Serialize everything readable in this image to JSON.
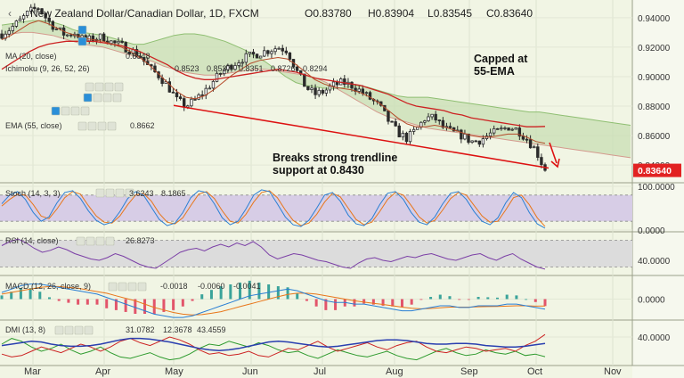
{
  "header": {
    "symbol": "New Zealand Dollar/Canadian Dollar, 1D, FXCM",
    "o_label": "O",
    "o": "0.83780",
    "h_label": "H",
    "h": "0.83904",
    "l_label": "L",
    "l": "0.83545",
    "c_label": "C",
    "c": "0.83640"
  },
  "overlay_legend": {
    "ma": {
      "label": "MA (20, close)",
      "value": "0.8548",
      "color": "#cc2222"
    },
    "ichimoku": {
      "label": "Ichimoku (9, 26, 52, 26)",
      "values": [
        "0.8523",
        "0.8537",
        "0.8351",
        "0.8726",
        "0.8294"
      ],
      "colors": [
        "#2a7fd4",
        "#cc2222",
        "#2e9b2e",
        "#2e9b2e",
        "#cc2222"
      ]
    },
    "ema": {
      "label": "EMA (55, close)",
      "value": "0.8662",
      "color": "#cc2222"
    }
  },
  "annotations": {
    "capped_line1": "Capped at",
    "capped_line2": "55-EMA",
    "breaks_line1": "Breaks strong trendline",
    "breaks_line2": "support at 0.8430"
  },
  "price_tag": "0.83640",
  "months": [
    "Mar",
    "Apr",
    "May",
    "Jun",
    "Jul",
    "Aug",
    "Sep",
    "Oct",
    "Nov"
  ],
  "colors": {
    "up": "#2a2a2a",
    "down": "#2a2a2a",
    "trendline": "#dd1111",
    "cloud": "#c8ddb4",
    "tag": "#e22222"
  },
  "chart_data": [
    {
      "type": "candlestick",
      "title": "New Zealand Dollar/Canadian Dollar, 1D, FXCM",
      "ylim": [
        0.828,
        0.952
      ],
      "yticks": [
        0.84,
        0.86,
        0.88,
        0.9,
        0.92,
        0.94
      ],
      "ytick_labels": [
        "0.84000",
        "0.86000",
        "0.88000",
        "0.90000",
        "0.92000",
        "0.94000"
      ],
      "x_months": [
        "Mar",
        "Apr",
        "May",
        "Jun",
        "Jul",
        "Aug",
        "Sep",
        "Oct",
        "Nov"
      ],
      "close_path": [
        0.929,
        0.933,
        0.938,
        0.944,
        0.947,
        0.938,
        0.932,
        0.928,
        0.93,
        0.924,
        0.926,
        0.927,
        0.923,
        0.921,
        0.918,
        0.914,
        0.906,
        0.901,
        0.894,
        0.884,
        0.88,
        0.884,
        0.89,
        0.897,
        0.904,
        0.908,
        0.912,
        0.914,
        0.916,
        0.918,
        0.92,
        0.918,
        0.904,
        0.893,
        0.888,
        0.89,
        0.894,
        0.896,
        0.894,
        0.89,
        0.885,
        0.88,
        0.87,
        0.862,
        0.858,
        0.864,
        0.872,
        0.872,
        0.865,
        0.862,
        0.86,
        0.856,
        0.857,
        0.861,
        0.863,
        0.866,
        0.864,
        0.858,
        0.85,
        0.8364
      ],
      "ma20": [
        0.925,
        0.928,
        0.932,
        0.936,
        0.938,
        0.936,
        0.933,
        0.93,
        0.928,
        0.926,
        0.925,
        0.924,
        0.922,
        0.92,
        0.917,
        0.913,
        0.908,
        0.902,
        0.896,
        0.89,
        0.886,
        0.885,
        0.887,
        0.891,
        0.896,
        0.901,
        0.905,
        0.909,
        0.911,
        0.912,
        0.913,
        0.912,
        0.908,
        0.903,
        0.898,
        0.895,
        0.893,
        0.892,
        0.891,
        0.889,
        0.886,
        0.882,
        0.877,
        0.872,
        0.868,
        0.866,
        0.866,
        0.867,
        0.866,
        0.864,
        0.862,
        0.86,
        0.859,
        0.859,
        0.86,
        0.861,
        0.861,
        0.859,
        0.856,
        0.8548
      ],
      "ema55": [
        0.905,
        0.909,
        0.913,
        0.917,
        0.92,
        0.922,
        0.923,
        0.924,
        0.924,
        0.924,
        0.924,
        0.923,
        0.922,
        0.921,
        0.919,
        0.917,
        0.914,
        0.911,
        0.908,
        0.904,
        0.901,
        0.899,
        0.898,
        0.898,
        0.899,
        0.9,
        0.901,
        0.902,
        0.903,
        0.904,
        0.905,
        0.904,
        0.903,
        0.901,
        0.899,
        0.898,
        0.897,
        0.896,
        0.895,
        0.894,
        0.892,
        0.89,
        0.888,
        0.885,
        0.882,
        0.88,
        0.879,
        0.878,
        0.877,
        0.875,
        0.874,
        0.872,
        0.871,
        0.87,
        0.869,
        0.868,
        0.867,
        0.866,
        0.866,
        0.8662
      ],
      "cloud_a": [
        0.935,
        0.936,
        0.937,
        0.938,
        0.938,
        0.937,
        0.935,
        0.932,
        0.93,
        0.929,
        0.928,
        0.926,
        0.924,
        0.922,
        0.922,
        0.924,
        0.926,
        0.928,
        0.929,
        0.929,
        0.928,
        0.926,
        0.924,
        0.921,
        0.918,
        0.914,
        0.91,
        0.905,
        0.9,
        0.896,
        0.894,
        0.893,
        0.892,
        0.892,
        0.893,
        0.894,
        0.893,
        0.891,
        0.889,
        0.887,
        0.886,
        0.886,
        0.886,
        0.885,
        0.884,
        0.883,
        0.882,
        0.881,
        0.88,
        0.879,
        0.878,
        0.877,
        0.876,
        0.876,
        0.875,
        0.874,
        0.873,
        0.872,
        0.871,
        0.87,
        0.869,
        0.868,
        0.867
      ],
      "cloud_b": [
        0.928,
        0.929,
        0.93,
        0.93,
        0.929,
        0.928,
        0.926,
        0.924,
        0.922,
        0.921,
        0.92,
        0.918,
        0.916,
        0.914,
        0.912,
        0.91,
        0.907,
        0.905,
        0.903,
        0.902,
        0.901,
        0.901,
        0.902,
        0.903,
        0.904,
        0.905,
        0.905,
        0.904,
        0.903,
        0.902,
        0.901,
        0.899,
        0.896,
        0.892,
        0.888,
        0.884,
        0.88,
        0.876,
        0.873,
        0.871,
        0.869,
        0.867,
        0.865,
        0.864,
        0.863,
        0.862,
        0.861,
        0.86,
        0.859,
        0.858,
        0.857,
        0.856,
        0.855,
        0.854,
        0.853,
        0.852,
        0.851,
        0.85,
        0.849,
        0.848,
        0.847,
        0.846,
        0.845
      ],
      "trendline": {
        "start": [
          "May",
          0.8805
        ],
        "end": [
          "Oct",
          0.838
        ]
      },
      "last_close": 0.8364
    },
    {
      "type": "line",
      "title": "Stoch (14, 3, 3)",
      "values_label": [
        "3.6243",
        "8.1865"
      ],
      "colors": [
        "#2a7fd4",
        "#e8761a"
      ],
      "ylim": [
        0,
        100
      ],
      "yticks": [
        0,
        100
      ],
      "ytick_labels": [
        "0.0000",
        "100.0000"
      ],
      "band": [
        20,
        80
      ],
      "k": [
        60,
        80,
        88,
        70,
        40,
        20,
        30,
        62,
        86,
        90,
        72,
        44,
        22,
        12,
        18,
        42,
        72,
        88,
        80,
        52,
        24,
        10,
        16,
        40,
        74,
        90,
        86,
        60,
        28,
        12,
        20,
        48,
        80,
        92,
        88,
        60,
        30,
        12,
        8,
        22,
        50,
        80,
        86,
        66,
        34,
        14,
        10,
        26,
        58,
        84,
        88,
        70,
        40,
        18,
        12,
        30,
        60,
        84,
        88,
        70,
        42,
        20,
        12,
        28,
        62,
        86,
        74,
        40,
        14,
        4
      ],
      "d": [
        55,
        70,
        82,
        80,
        58,
        32,
        26,
        48,
        74,
        88,
        82,
        56,
        32,
        18,
        16,
        32,
        58,
        80,
        84,
        66,
        38,
        18,
        14,
        28,
        56,
        82,
        88,
        72,
        44,
        20,
        16,
        36,
        64,
        86,
        90,
        74,
        46,
        22,
        10,
        16,
        36,
        64,
        84,
        76,
        50,
        24,
        12,
        18,
        42,
        70,
        86,
        80,
        56,
        30,
        16,
        22,
        46,
        72,
        86,
        80,
        56,
        32,
        18,
        20,
        46,
        74,
        80,
        58,
        28,
        8
      ]
    },
    {
      "type": "line",
      "title": "RSI (14, close)",
      "values_label": [
        "26.8273"
      ],
      "colors": [
        "#7b3fa6"
      ],
      "ylim": [
        20,
        80
      ],
      "yticks": [
        40
      ],
      "ytick_labels": [
        "40.0000"
      ],
      "band": [
        30,
        70
      ],
      "rsi": [
        62,
        68,
        72,
        66,
        58,
        52,
        55,
        60,
        56,
        50,
        46,
        42,
        40,
        44,
        50,
        46,
        40,
        34,
        30,
        28,
        36,
        44,
        52,
        56,
        58,
        54,
        60,
        64,
        60,
        66,
        62,
        68,
        60,
        48,
        42,
        46,
        50,
        48,
        44,
        40,
        38,
        34,
        30,
        28,
        36,
        42,
        44,
        40,
        38,
        42,
        46,
        44,
        48,
        50,
        46,
        42,
        40,
        44,
        48,
        50,
        44,
        40,
        46,
        50,
        42,
        36,
        30,
        26.8
      ]
    },
    {
      "type": "bar+line",
      "title": "MACD (12, 26, close, 9)",
      "values_label": [
        "-0.0018",
        "-0.0060",
        "-0.0041"
      ],
      "colors": [
        "#cc2244",
        "#2a7fd4",
        "#e8761a"
      ],
      "ylim": [
        -0.012,
        0.012
      ],
      "yticks": [
        0
      ],
      "ytick_labels": [
        "0.0000"
      ],
      "macd": [
        0.004,
        0.006,
        0.008,
        0.009,
        0.009,
        0.008,
        0.007,
        0.006,
        0.005,
        0.004,
        0.003,
        0.001,
        -0.001,
        -0.003,
        -0.005,
        -0.007,
        -0.009,
        -0.01,
        -0.011,
        -0.011,
        -0.01,
        -0.008,
        -0.006,
        -0.004,
        -0.002,
        0.0,
        0.002,
        0.003,
        0.004,
        0.005,
        0.006,
        0.005,
        0.003,
        0.001,
        -0.001,
        -0.002,
        -0.002,
        -0.003,
        -0.003,
        -0.004,
        -0.005,
        -0.006,
        -0.007,
        -0.007,
        -0.006,
        -0.005,
        -0.004,
        -0.004,
        -0.005,
        -0.005,
        -0.004,
        -0.004,
        -0.004,
        -0.003,
        -0.003,
        -0.004,
        -0.005,
        -0.006
      ],
      "signal": [
        0.003,
        0.004,
        0.005,
        0.006,
        0.007,
        0.0075,
        0.0075,
        0.007,
        0.0065,
        0.0055,
        0.0045,
        0.0035,
        0.002,
        0.0005,
        -0.001,
        -0.003,
        -0.005,
        -0.0065,
        -0.008,
        -0.009,
        -0.0095,
        -0.0093,
        -0.0085,
        -0.0075,
        -0.006,
        -0.0045,
        -0.003,
        -0.0015,
        0.0,
        0.0015,
        0.0028,
        0.0035,
        0.0035,
        0.003,
        0.002,
        0.001,
        0.0,
        -0.001,
        -0.0018,
        -0.0025,
        -0.0032,
        -0.004,
        -0.0048,
        -0.0055,
        -0.0058,
        -0.0056,
        -0.0052,
        -0.0048,
        -0.0048,
        -0.0048,
        -0.0046,
        -0.0045,
        -0.0044,
        -0.0042,
        -0.004,
        -0.004,
        -0.0042,
        -0.0041
      ]
    },
    {
      "type": "line",
      "title": "DMI (13, 8)",
      "values_label": [
        "31.0782",
        "12.3678",
        "43.4559"
      ],
      "colors": [
        "#2a3fb0",
        "#2e9b2e",
        "#cc2222"
      ],
      "ylim": [
        0,
        60
      ],
      "yticks": [
        40
      ],
      "ytick_labels": [
        "40.0000"
      ],
      "adx": [
        28,
        30,
        32,
        34,
        33,
        30,
        28,
        27,
        27,
        28,
        30,
        33,
        36,
        38,
        38,
        37,
        35,
        33,
        30,
        27,
        24,
        22,
        21,
        22,
        24,
        27,
        30,
        33,
        34,
        33,
        31,
        29,
        27,
        26,
        27,
        29,
        31,
        33,
        35,
        36,
        36,
        35,
        33,
        31,
        30,
        30,
        31,
        31,
        30,
        28,
        27,
        26,
        26,
        27,
        29,
        31
      ],
      "plus_di": [
        30,
        38,
        34,
        26,
        20,
        24,
        30,
        22,
        16,
        20,
        26,
        18,
        12,
        10,
        14,
        18,
        12,
        8,
        10,
        16,
        24,
        30,
        28,
        34,
        30,
        26,
        32,
        28,
        22,
        18,
        20,
        14,
        10,
        16,
        22,
        18,
        14,
        12,
        16,
        20,
        14,
        10,
        8,
        14,
        20,
        24,
        18,
        14,
        16,
        22,
        18,
        16,
        20,
        14,
        16,
        12.4
      ],
      "minus_di": [
        16,
        12,
        14,
        20,
        26,
        22,
        18,
        24,
        30,
        26,
        20,
        26,
        34,
        38,
        32,
        28,
        34,
        40,
        36,
        30,
        22,
        16,
        18,
        14,
        16,
        20,
        14,
        12,
        18,
        24,
        22,
        28,
        34,
        26,
        20,
        24,
        28,
        32,
        26,
        22,
        28,
        32,
        34,
        26,
        20,
        18,
        22,
        26,
        24,
        20,
        22,
        24,
        20,
        28,
        34,
        43.5
      ]
    }
  ]
}
